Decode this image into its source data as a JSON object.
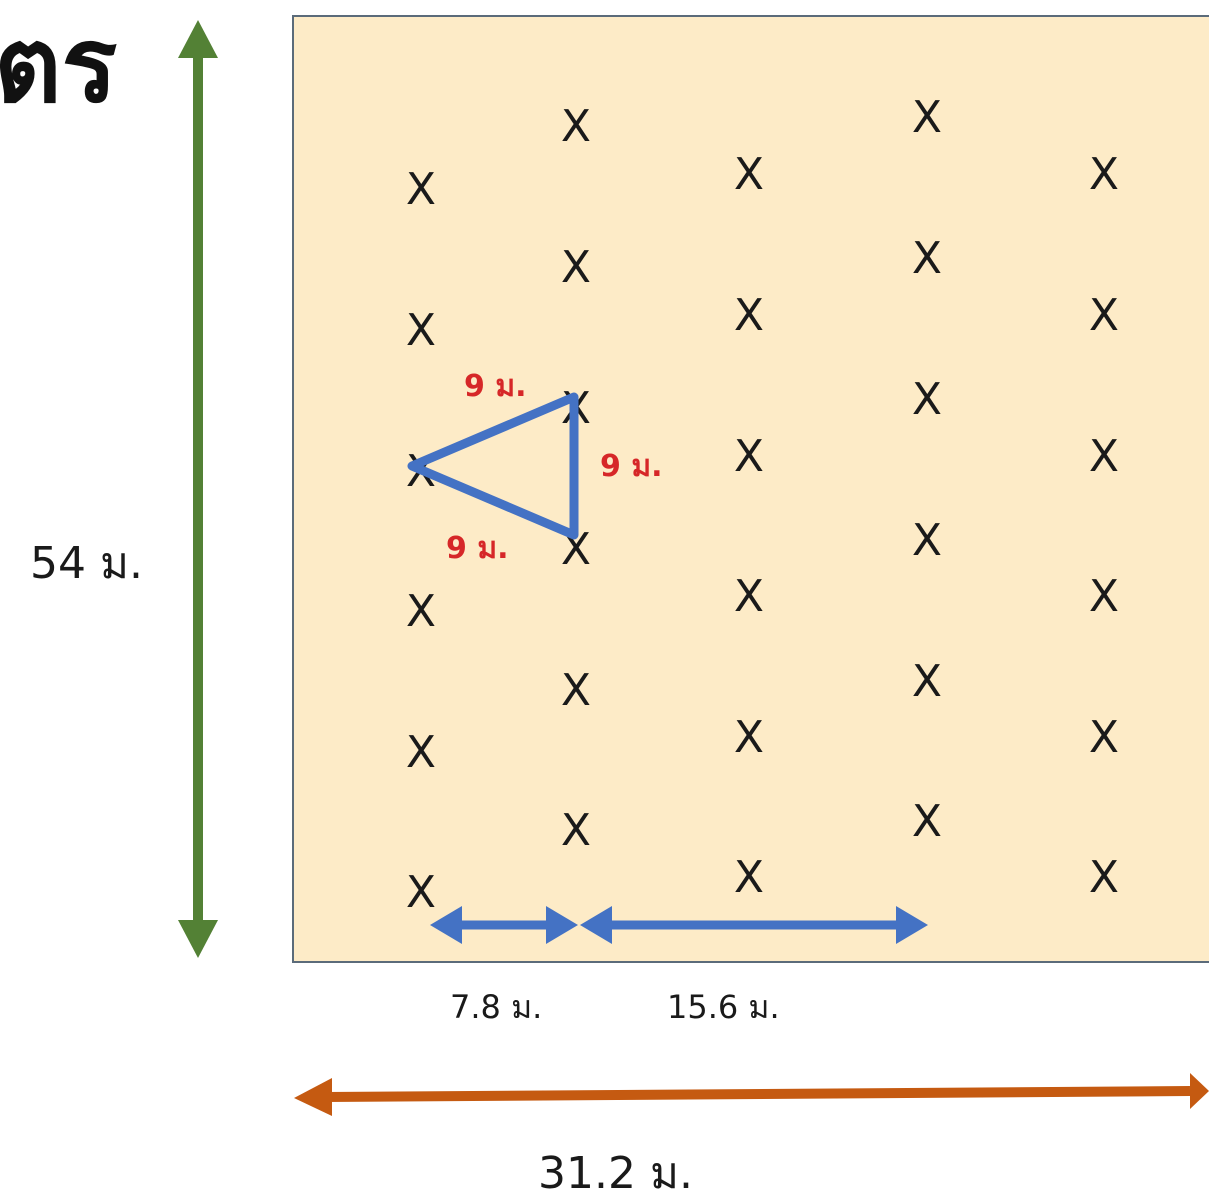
{
  "title_fragment": "ตร",
  "dimensions": {
    "height_label": "54 ม.",
    "width_label": "31.2 ม.",
    "row_spacing_label": "7.8 ม.",
    "double_spacing_label": "15.6 ม.",
    "triangle_side_top": "9 ม.",
    "triangle_side_right": "9 ม.",
    "triangle_side_bottom": "9 ม."
  },
  "plant_marker": "X",
  "colors": {
    "field_fill": "#fdebc7",
    "field_border": "#5b6b7a",
    "height_arrow": "#538135",
    "width_arrow": "#c55a11",
    "spacing_arrow": "#4472c4",
    "triangle": "#4472c4",
    "triangle_label": "#d62728",
    "text": "#1a1a1a"
  },
  "icons": {
    "height_arrow": "double-arrow-vertical-icon",
    "width_arrow": "double-arrow-horizontal-icon",
    "spacing_arrow": "double-arrow-horizontal-icon"
  }
}
